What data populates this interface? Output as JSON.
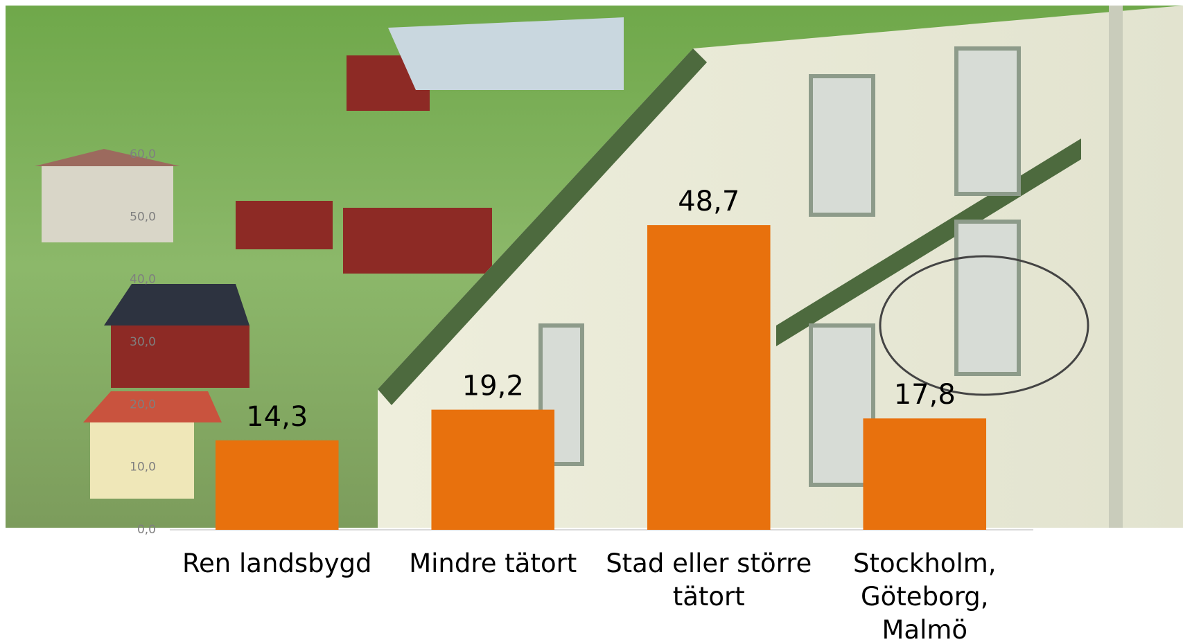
{
  "chart_data": {
    "type": "bar",
    "categories": [
      "Ren landsbygd",
      "Mindre tätort",
      "Stad eller större tätort",
      "Stockholm, Göteborg, Malmö"
    ],
    "values": [
      14.3,
      19.2,
      48.7,
      17.8
    ],
    "value_labels": [
      "14,3",
      "19,2",
      "48,7",
      "17,8"
    ],
    "color": "#e8710d",
    "ylim": [
      0,
      60
    ],
    "yticks": [
      {
        "value": 0,
        "label": "0,0"
      },
      {
        "value": 10,
        "label": "10,0"
      },
      {
        "value": 20,
        "label": "20,0"
      },
      {
        "value": 30,
        "label": "30,0"
      },
      {
        "value": 40,
        "label": "40,0"
      },
      {
        "value": 50,
        "label": "50,0"
      },
      {
        "value": 60,
        "label": "60,0"
      }
    ]
  }
}
